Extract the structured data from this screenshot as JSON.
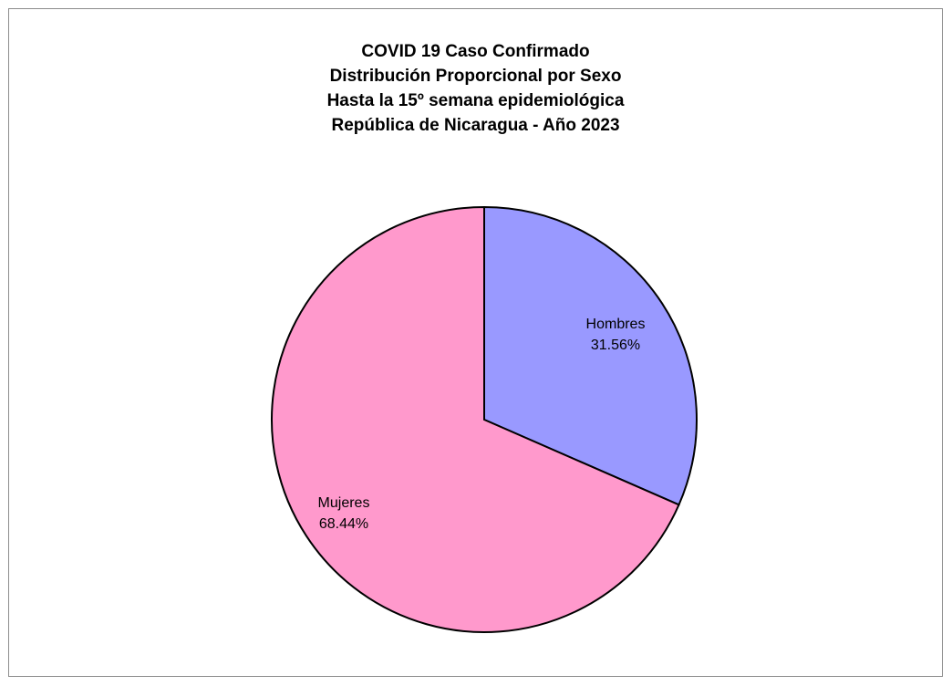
{
  "chart_data": {
    "type": "pie",
    "title_lines": [
      "COVID 19 Caso Confirmado",
      "Distribución Proporcional por Sexo",
      "Hasta la 15º semana epidemiológica",
      "República de Nicaragua - Año 2023"
    ],
    "slices": [
      {
        "label": "Hombres",
        "value": 31.56,
        "value_label": "31.56%",
        "color": "#9999ff"
      },
      {
        "label": "Mujeres",
        "value": 68.44,
        "value_label": "68.44%",
        "color": "#ff99cc"
      }
    ],
    "start_angle": "12 o'clock",
    "direction": "clockwise",
    "legend": "none",
    "border_color": "#000000"
  }
}
